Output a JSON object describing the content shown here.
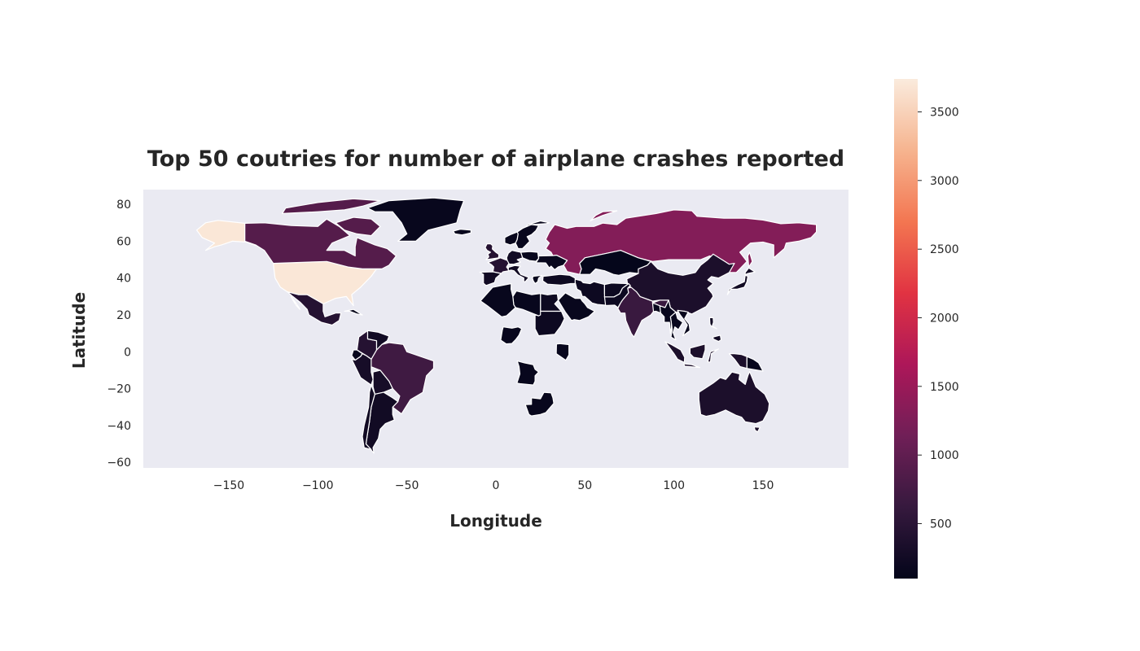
{
  "title": "Top 50 coutries for number of airplane crashes reported",
  "xlabel": "Longitude",
  "ylabel": "Latitude",
  "colors": {
    "map_background": "#eaeaf2",
    "ocean_outline": "#ffffff",
    "colormap": [
      "#03051a",
      "#36193e",
      "#701f57",
      "#ad1759",
      "#e13342",
      "#f37651",
      "#f6b48f",
      "#faebdd"
    ]
  },
  "chart_data": {
    "type": "choropleth",
    "colormap_name": "rocket",
    "xlim": [
      -198,
      198
    ],
    "ylim": [
      -63,
      88
    ],
    "x_ticks": [
      -150,
      -100,
      -50,
      0,
      50,
      100,
      150
    ],
    "x_tick_labels": [
      "−150",
      "−100",
      "−50",
      "0",
      "50",
      "100",
      "150"
    ],
    "y_ticks": [
      80,
      60,
      40,
      20,
      0,
      -20,
      -40,
      -60
    ],
    "y_tick_labels": [
      "80",
      "60",
      "40",
      "20",
      "0",
      "−20",
      "−40",
      "−60"
    ],
    "colorbar": {
      "range": [
        100,
        3740
      ],
      "ticks": [
        500,
        1000,
        1500,
        2000,
        2500,
        3000,
        3500
      ],
      "tick_labels": [
        "500",
        "1000",
        "1500",
        "2000",
        "2500",
        "3000",
        "3500"
      ]
    },
    "grid": false,
    "countries": [
      {
        "name": "United States",
        "value": 3700
      },
      {
        "name": "Russia",
        "value": 1300
      },
      {
        "name": "Canada",
        "value": 900
      },
      {
        "name": "Brazil",
        "value": 700
      },
      {
        "name": "India",
        "value": 650
      },
      {
        "name": "Colombia",
        "value": 450
      },
      {
        "name": "Mexico",
        "value": 450
      },
      {
        "name": "United Kingdom",
        "value": 450
      },
      {
        "name": "France",
        "value": 450
      },
      {
        "name": "China",
        "value": 350
      },
      {
        "name": "Australia",
        "value": 350
      },
      {
        "name": "Indonesia",
        "value": 350
      },
      {
        "name": "Peru",
        "value": 300
      },
      {
        "name": "Bolivia",
        "value": 300
      },
      {
        "name": "Argentina",
        "value": 250
      },
      {
        "name": "Chile",
        "value": 250
      },
      {
        "name": "Venezuela",
        "value": 250
      },
      {
        "name": "Italy",
        "value": 250
      },
      {
        "name": "Germany",
        "value": 250
      },
      {
        "name": "Spain",
        "value": 250
      },
      {
        "name": "Philippines",
        "value": 250
      },
      {
        "name": "Japan",
        "value": 250
      },
      {
        "name": "Iran",
        "value": 200
      },
      {
        "name": "Turkey",
        "value": 200
      },
      {
        "name": "Pakistan",
        "value": 200
      },
      {
        "name": "Afghanistan",
        "value": 200
      },
      {
        "name": "Egypt",
        "value": 200
      },
      {
        "name": "Sudan",
        "value": 200
      },
      {
        "name": "Libya",
        "value": 150
      },
      {
        "name": "Nigeria",
        "value": 150
      },
      {
        "name": "Kenya",
        "value": 150
      },
      {
        "name": "Angola",
        "value": 150
      },
      {
        "name": "South Africa",
        "value": 150
      },
      {
        "name": "Kazakhstan",
        "value": 120
      },
      {
        "name": "Ukraine",
        "value": 150
      },
      {
        "name": "Greenland",
        "value": 150
      },
      {
        "name": "Norway",
        "value": 150
      },
      {
        "name": "Sweden",
        "value": 150
      },
      {
        "name": "Thailand",
        "value": 150
      },
      {
        "name": "Vietnam",
        "value": 150
      },
      {
        "name": "Myanmar",
        "value": 150
      },
      {
        "name": "Papua New Guinea",
        "value": 150
      },
      {
        "name": "Cuba",
        "value": 150
      },
      {
        "name": "Ecuador",
        "value": 150
      },
      {
        "name": "Iceland",
        "value": 150
      },
      {
        "name": "Saudi Arabia",
        "value": 150
      },
      {
        "name": "Algeria",
        "value": 150
      },
      {
        "name": "Greece",
        "value": 150
      },
      {
        "name": "Poland",
        "value": 150
      },
      {
        "name": "Bangladesh",
        "value": 150
      }
    ]
  }
}
